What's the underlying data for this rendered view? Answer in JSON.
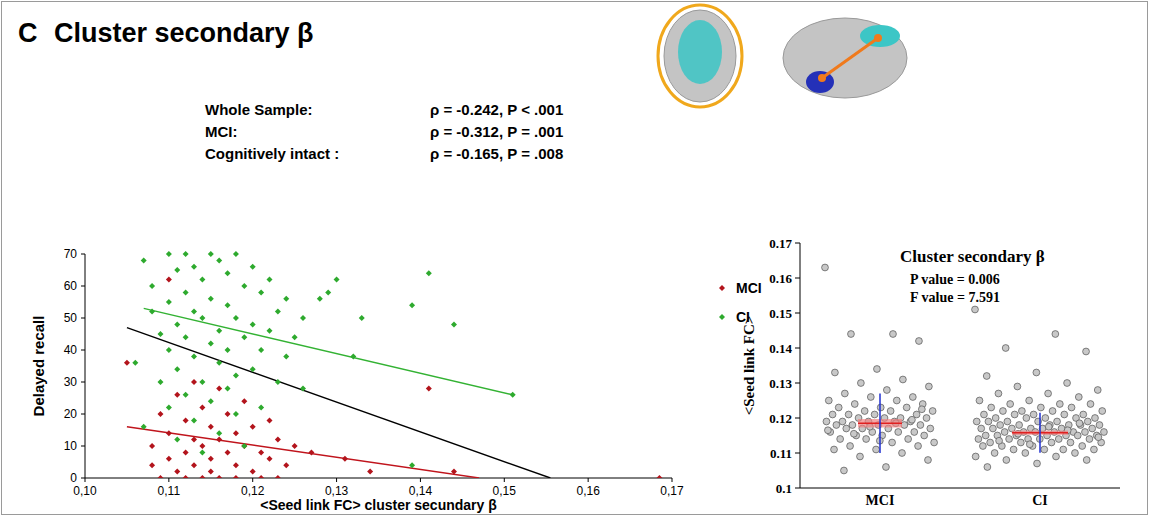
{
  "chart_data": [
    {
      "type": "scatter",
      "panel": "C",
      "title": "Cluster secondary β",
      "x_label": "<Seed link FC> cluster secundary β",
      "y_label": "Delayed recall",
      "annotations": [
        {
          "label": "Whole Sample:",
          "text": "ρ = -0.242, P < .001"
        },
        {
          "label": "MCI:",
          "text": "ρ = -0.312, P = .001"
        },
        {
          "label": "Cognitively intact :",
          "text": "ρ = -0.165, P = .008"
        }
      ],
      "xlim": [
        0.1,
        0.17
      ],
      "xticks": [
        {
          "value": 0.1,
          "label": "0,10"
        },
        {
          "value": 0.11,
          "label": "0,11"
        },
        {
          "value": 0.12,
          "label": "0,12"
        },
        {
          "value": 0.13,
          "label": "0,13"
        },
        {
          "value": 0.14,
          "label": "0,14"
        },
        {
          "value": 0.15,
          "label": "0,15"
        },
        {
          "value": 0.16,
          "label": "0,16"
        },
        {
          "value": 0.17,
          "label": "0,17"
        }
      ],
      "ylim": [
        0,
        70
      ],
      "yticks": [
        0,
        10,
        20,
        30,
        40,
        50,
        60,
        70
      ],
      "legend": "right",
      "series": [
        {
          "name": "MCI",
          "color": "#b3141c",
          "marker": "diamond",
          "x": [
            0.105,
            0.108,
            0.108,
            0.109,
            0.109,
            0.11,
            0.11,
            0.11,
            0.111,
            0.111,
            0.112,
            0.112,
            0.112,
            0.113,
            0.113,
            0.113,
            0.114,
            0.114,
            0.114,
            0.115,
            0.115,
            0.115,
            0.116,
            0.116,
            0.116,
            0.117,
            0.117,
            0.118,
            0.118,
            0.118,
            0.119,
            0.119,
            0.12,
            0.12,
            0.121,
            0.121,
            0.122,
            0.122,
            0.123,
            0.123,
            0.124,
            0.125,
            0.127,
            0.131,
            0.134,
            0.141,
            0.144,
            0.1685
          ],
          "values": [
            36,
            10,
            4,
            20,
            0,
            62,
            14,
            6,
            26,
            2,
            18,
            8,
            0,
            30,
            12,
            4,
            22,
            10,
            0,
            16,
            6,
            2,
            28,
            12,
            0,
            20,
            8,
            14,
            4,
            0,
            24,
            10,
            16,
            2,
            8,
            0,
            18,
            6,
            12,
            0,
            4,
            10,
            8,
            6,
            2,
            28,
            2,
            0
          ]
        },
        {
          "name": "CI",
          "color": "#2eaa2e",
          "marker": "diamond",
          "x": [
            0.107,
            0.108,
            0.108,
            0.109,
            0.109,
            0.11,
            0.11,
            0.11,
            0.11,
            0.111,
            0.111,
            0.111,
            0.111,
            0.112,
            0.112,
            0.112,
            0.112,
            0.113,
            0.113,
            0.113,
            0.113,
            0.114,
            0.114,
            0.114,
            0.114,
            0.115,
            0.115,
            0.115,
            0.115,
            0.116,
            0.116,
            0.116,
            0.116,
            0.117,
            0.117,
            0.117,
            0.117,
            0.118,
            0.118,
            0.118,
            0.118,
            0.119,
            0.119,
            0.119,
            0.12,
            0.12,
            0.12,
            0.121,
            0.121,
            0.121,
            0.122,
            0.122,
            0.123,
            0.123,
            0.124,
            0.124,
            0.125,
            0.126,
            0.126,
            0.128,
            0.129,
            0.13,
            0.132,
            0.133,
            0.139,
            0.139,
            0.141,
            0.144,
            0.151,
            0.106,
            0.107
          ],
          "values": [
            68,
            60,
            52,
            45,
            30,
            70,
            55,
            40,
            22,
            65,
            48,
            34,
            12,
            70,
            58,
            44,
            26,
            66,
            52,
            38,
            18,
            62,
            50,
            30,
            8,
            70,
            56,
            42,
            24,
            68,
            46,
            36,
            14,
            64,
            54,
            40,
            28,
            70,
            50,
            32,
            20,
            60,
            44,
            10,
            66,
            48,
            34,
            58,
            40,
            22,
            62,
            46,
            52,
            30,
            56,
            38,
            44,
            50,
            28,
            56,
            58,
            62,
            38,
            50,
            54,
            4,
            64,
            48,
            26,
            36,
            16
          ]
        },
        {
          "type": "line",
          "color": "#c0141c",
          "x": [
            0.105,
            0.147
          ],
          "values": [
            16,
            0
          ]
        },
        {
          "type": "line",
          "color": "#33b233",
          "x": [
            0.107,
            0.151
          ],
          "values": [
            53,
            26
          ]
        },
        {
          "type": "line",
          "color": "#000000",
          "x": [
            0.105,
            0.1555
          ],
          "values": [
            47,
            0
          ]
        }
      ]
    },
    {
      "type": "strip",
      "title": "Cluster secondary β",
      "y_label": "<Seed link FC>",
      "annotations": [
        "P value = 0.006",
        "F value = 7.591"
      ],
      "categories": [
        "MCI",
        "CI"
      ],
      "color": "#c8c8c8",
      "ylim": [
        0.1,
        0.17
      ],
      "yticks": [
        0.1,
        0.11,
        0.12,
        0.13,
        0.14,
        0.15,
        0.16,
        0.17
      ],
      "values": [
        [
          0.163,
          0.144,
          0.144,
          0.142,
          0.134,
          0.133,
          0.131,
          0.13,
          0.129,
          0.128,
          0.127,
          0.126,
          0.126,
          0.125,
          0.125,
          0.124,
          0.124,
          0.123,
          0.123,
          0.123,
          0.122,
          0.122,
          0.122,
          0.121,
          0.121,
          0.121,
          0.121,
          0.12,
          0.12,
          0.12,
          0.12,
          0.119,
          0.119,
          0.119,
          0.119,
          0.119,
          0.118,
          0.118,
          0.118,
          0.118,
          0.118,
          0.117,
          0.117,
          0.117,
          0.117,
          0.116,
          0.116,
          0.116,
          0.116,
          0.115,
          0.115,
          0.115,
          0.114,
          0.114,
          0.114,
          0.113,
          0.113,
          0.112,
          0.112,
          0.111,
          0.111,
          0.11,
          0.109,
          0.108,
          0.106,
          0.105,
          0.1195,
          0.1175,
          0.1165,
          0.1185,
          0.1155,
          0.1225,
          0.1135
        ],
        [
          0.151,
          0.144,
          0.14,
          0.139,
          0.133,
          0.132,
          0.13,
          0.129,
          0.128,
          0.127,
          0.127,
          0.126,
          0.125,
          0.125,
          0.124,
          0.124,
          0.124,
          0.123,
          0.123,
          0.123,
          0.122,
          0.122,
          0.122,
          0.122,
          0.121,
          0.121,
          0.121,
          0.121,
          0.121,
          0.12,
          0.12,
          0.12,
          0.12,
          0.12,
          0.119,
          0.119,
          0.119,
          0.119,
          0.119,
          0.119,
          0.118,
          0.118,
          0.118,
          0.118,
          0.118,
          0.118,
          0.117,
          0.117,
          0.117,
          0.117,
          0.117,
          0.117,
          0.117,
          0.116,
          0.116,
          0.116,
          0.116,
          0.116,
          0.116,
          0.116,
          0.115,
          0.115,
          0.115,
          0.115,
          0.115,
          0.115,
          0.115,
          0.114,
          0.114,
          0.114,
          0.114,
          0.114,
          0.114,
          0.113,
          0.113,
          0.113,
          0.113,
          0.113,
          0.112,
          0.112,
          0.112,
          0.112,
          0.111,
          0.111,
          0.111,
          0.111,
          0.11,
          0.11,
          0.11,
          0.109,
          0.109,
          0.108,
          0.108,
          0.107,
          0.106,
          0.1165,
          0.1155,
          0.1145,
          0.1175,
          0.1135,
          0.1185,
          0.1125
        ]
      ],
      "means": [
        0.1185,
        0.1158
      ],
      "sem": [
        0.0012,
        0.0006
      ],
      "sd": [
        0.0085,
        0.0057
      ]
    }
  ]
}
